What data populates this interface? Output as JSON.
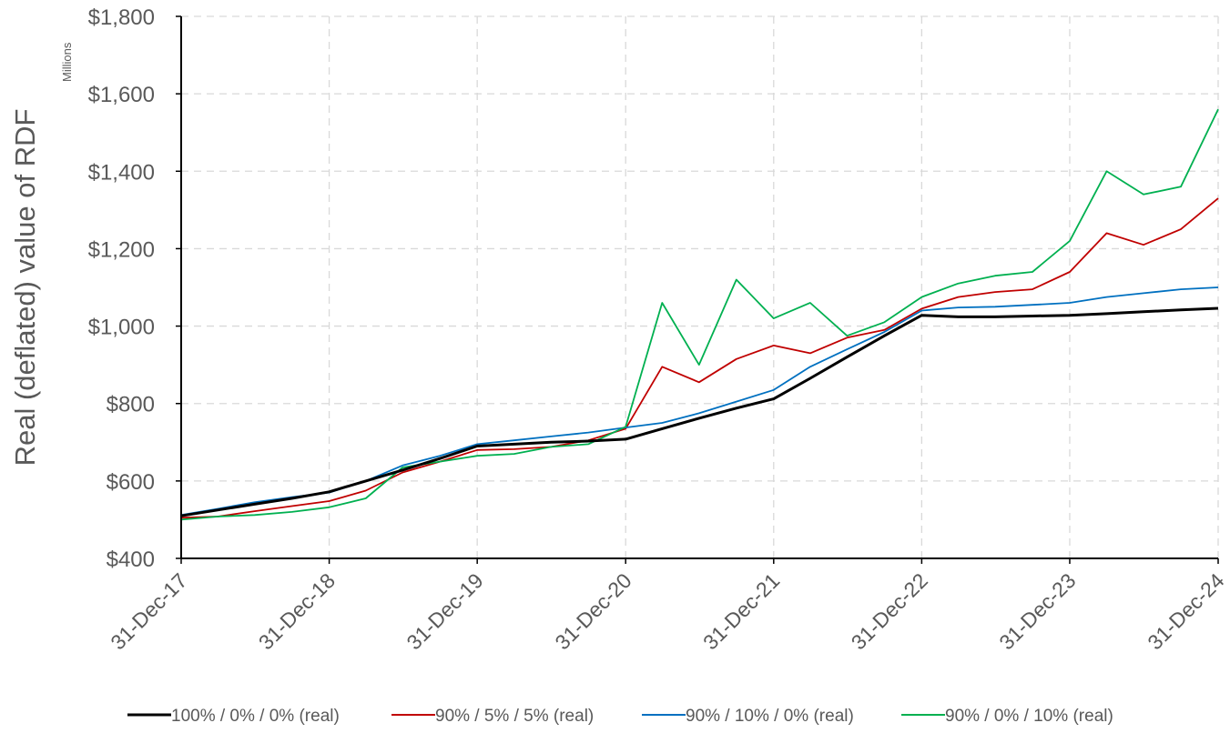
{
  "chart_data": {
    "type": "line",
    "ylabel": "Real (deflated) value of RDF",
    "yunit": "Millions",
    "ylim": [
      400,
      1800
    ],
    "yticks": [
      400,
      600,
      800,
      1000,
      1200,
      1400,
      1600,
      1800
    ],
    "ytick_labels": [
      "$400",
      "$600",
      "$800",
      "$1,000",
      "$1,200",
      "$1,400",
      "$1,600",
      "$1,800"
    ],
    "x_ticks": [
      "31-Dec-17",
      "31-Dec-18",
      "31-Dec-19",
      "31-Dec-20",
      "31-Dec-21",
      "31-Dec-22",
      "31-Dec-23",
      "31-Dec-24"
    ],
    "xlim": [
      "31-Dec-17",
      "31-Dec-24"
    ],
    "grid": true,
    "legend": "bottom",
    "x": [
      "31-Dec-17",
      "31-Mar-18",
      "30-Jun-18",
      "30-Sep-18",
      "31-Dec-18",
      "31-Mar-19",
      "30-Jun-19",
      "30-Sep-19",
      "31-Dec-19",
      "31-Mar-20",
      "30-Jun-20",
      "30-Sep-20",
      "31-Dec-20",
      "31-Mar-21",
      "30-Jun-21",
      "30-Sep-21",
      "31-Dec-21",
      "31-Mar-22",
      "30-Jun-22",
      "30-Sep-22",
      "31-Dec-22",
      "31-Mar-23",
      "30-Jun-23",
      "30-Sep-23",
      "31-Dec-23",
      "31-Mar-24",
      "30-Jun-24",
      "30-Sep-24",
      "31-Dec-24"
    ],
    "series": [
      {
        "name": "100% / 0% / 0% (real)",
        "color": "#000000",
        "values": [
          510,
          525,
          540,
          555,
          572,
          600,
          628,
          658,
          690,
          695,
          700,
          703,
          708,
          735,
          762,
          788,
          812,
          865,
          920,
          975,
          1028,
          1024,
          1024,
          1026,
          1028,
          1032,
          1037,
          1042,
          1046
        ]
      },
      {
        "name": "90% / 5% / 5% (real)",
        "color": "#c00000",
        "values": [
          505,
          508,
          522,
          535,
          548,
          575,
          622,
          650,
          680,
          682,
          688,
          705,
          735,
          895,
          855,
          915,
          950,
          930,
          970,
          990,
          1045,
          1075,
          1088,
          1095,
          1140,
          1240,
          1210,
          1250,
          1330
        ]
      },
      {
        "name": "90% / 10% / 0% (real)",
        "color": "#0070c0",
        "values": [
          512,
          528,
          545,
          558,
          570,
          600,
          640,
          665,
          695,
          705,
          715,
          725,
          738,
          750,
          775,
          805,
          835,
          895,
          940,
          985,
          1040,
          1048,
          1050,
          1055,
          1060,
          1075,
          1085,
          1095,
          1100
        ]
      },
      {
        "name": "90% / 0% / 10% (real)",
        "color": "#00b050",
        "values": [
          500,
          508,
          512,
          520,
          532,
          555,
          635,
          650,
          665,
          670,
          688,
          695,
          740,
          1060,
          900,
          1120,
          1020,
          1060,
          975,
          1010,
          1075,
          1110,
          1130,
          1140,
          1220,
          1400,
          1340,
          1360,
          1560
        ]
      }
    ]
  }
}
